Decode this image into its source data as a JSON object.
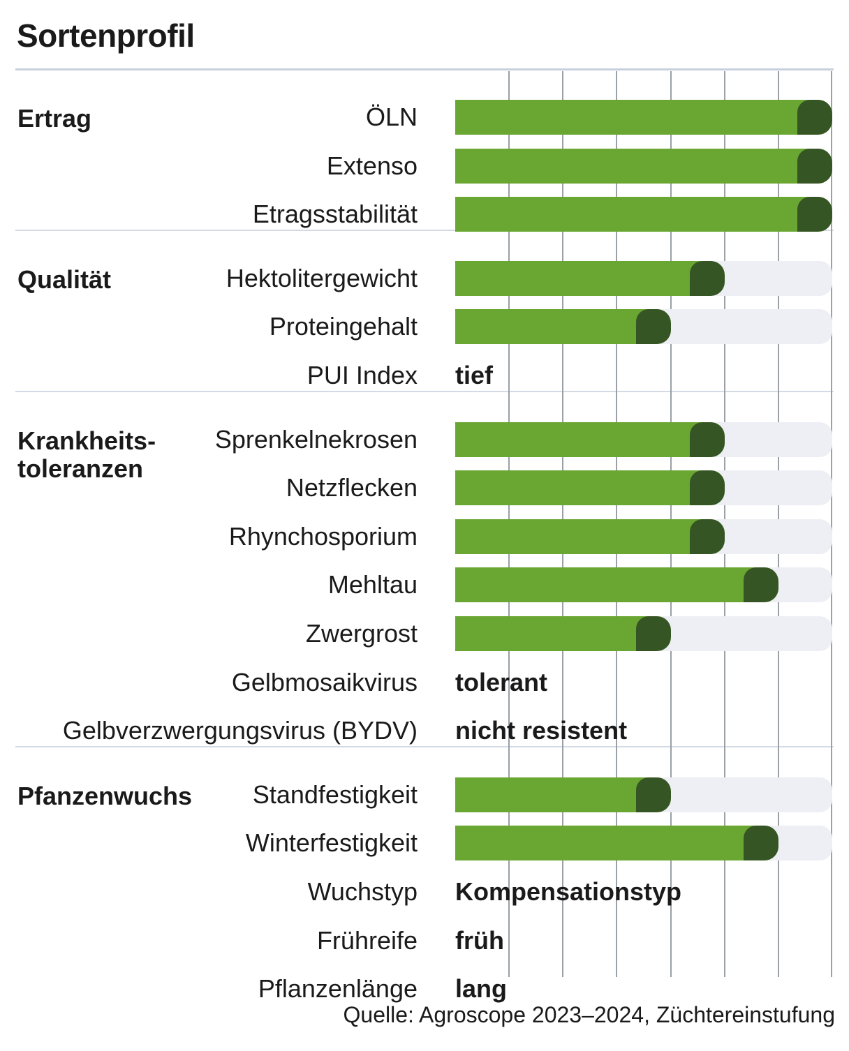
{
  "title": "Sortenprofil",
  "source": "Quelle: Agroscope 2023–2024, Züchtereinstufung",
  "colors": {
    "bar": "#6aa632",
    "bar_tip": "#365524",
    "track": "#edeff4",
    "grid": "#9aa0a6"
  },
  "chart_data": {
    "type": "bar",
    "orientation": "horizontal",
    "scale_max": 7,
    "grid": true,
    "sections": [
      {
        "name": "Ertrag",
        "rows": [
          {
            "label": "ÖLN",
            "value": 7
          },
          {
            "label": "Extenso",
            "value": 7
          },
          {
            "label": "Etragsstabilität",
            "value": 7
          }
        ]
      },
      {
        "name": "Qualität",
        "rows": [
          {
            "label": "Hektolitergewicht",
            "value": 5
          },
          {
            "label": "Proteingehalt",
            "value": 4
          },
          {
            "label": "PUI Index",
            "text": "tief"
          }
        ]
      },
      {
        "name": "Krankheits-\ntoleranzen",
        "rows": [
          {
            "label": "Sprenkelnekrosen",
            "value": 5
          },
          {
            "label": "Netzflecken",
            "value": 5
          },
          {
            "label": "Rhynchosporium",
            "value": 5
          },
          {
            "label": "Mehltau",
            "value": 6
          },
          {
            "label": "Zwergrost",
            "value": 4
          },
          {
            "label": "Gelbmosaikvirus",
            "text": "tolerant"
          },
          {
            "label": "Gelbverzwergungsvirus (BYDV)",
            "text": "nicht resistent"
          }
        ]
      },
      {
        "name": "Pfanzenwuchs",
        "rows": [
          {
            "label": "Standfestigkeit",
            "value": 4
          },
          {
            "label": "Winterfestigkeit",
            "value": 6
          },
          {
            "label": "Wuchstyp",
            "text": "Kompensationstyp"
          },
          {
            "label": "Frühreife",
            "text": "früh"
          },
          {
            "label": "Pflanzenlänge",
            "text": "lang"
          }
        ]
      }
    ]
  }
}
